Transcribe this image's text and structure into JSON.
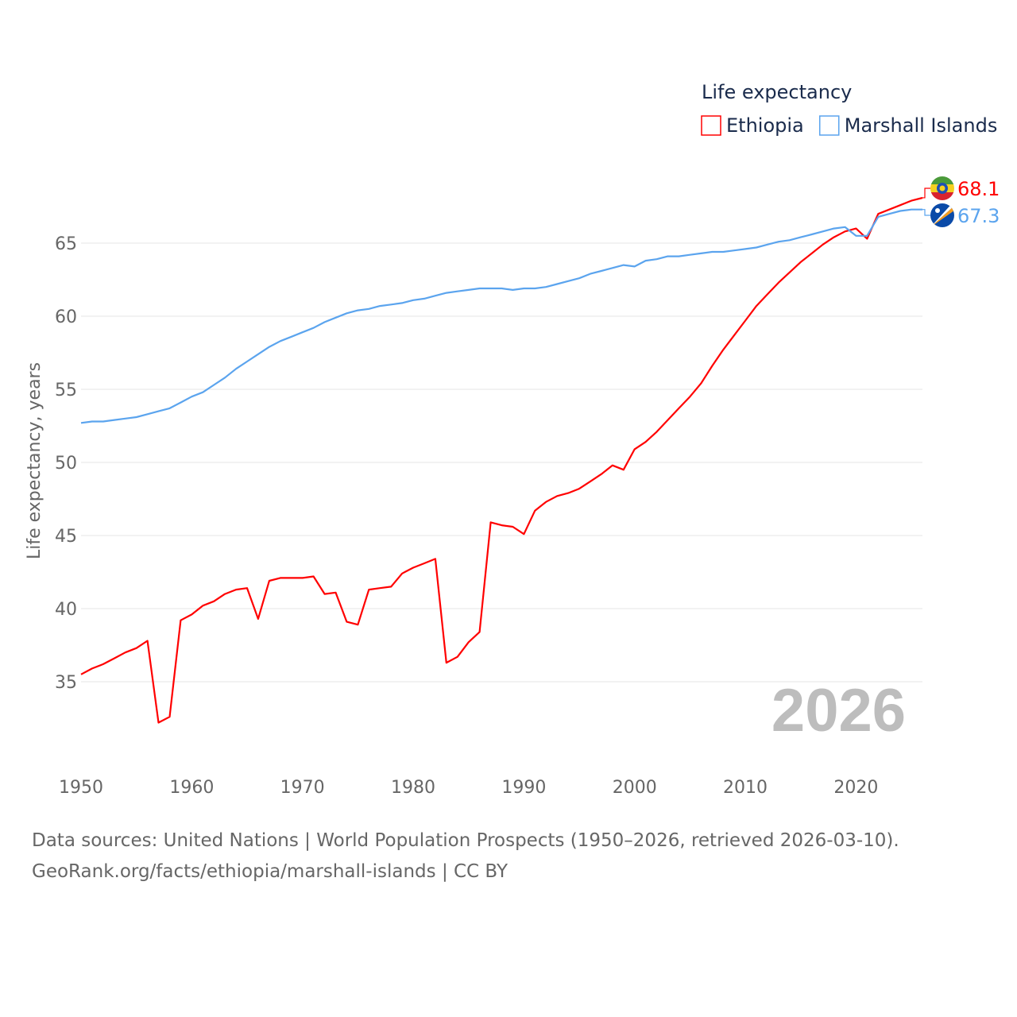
{
  "chart_data": {
    "type": "line",
    "title": "",
    "xlabel": "",
    "ylabel": "Life expectancy, years",
    "legend_title": "Life expectancy",
    "legend_position": "top-right",
    "xlim": [
      1950,
      2026
    ],
    "ylim": [
      31,
      69
    ],
    "x_ticks": [
      1950,
      1960,
      1970,
      1980,
      1990,
      2000,
      2010,
      2020
    ],
    "y_ticks": [
      35,
      40,
      45,
      50,
      55,
      60,
      65
    ],
    "grid": true,
    "watermark_year": "2026",
    "x": [
      1950,
      1951,
      1952,
      1953,
      1954,
      1955,
      1956,
      1957,
      1958,
      1959,
      1960,
      1961,
      1962,
      1963,
      1964,
      1965,
      1966,
      1967,
      1968,
      1969,
      1970,
      1971,
      1972,
      1973,
      1974,
      1975,
      1976,
      1977,
      1978,
      1979,
      1980,
      1981,
      1982,
      1983,
      1984,
      1985,
      1986,
      1987,
      1988,
      1989,
      1990,
      1991,
      1992,
      1993,
      1994,
      1995,
      1996,
      1997,
      1998,
      1999,
      2000,
      2001,
      2002,
      2003,
      2004,
      2005,
      2006,
      2007,
      2008,
      2009,
      2010,
      2011,
      2012,
      2013,
      2014,
      2015,
      2016,
      2017,
      2018,
      2019,
      2020,
      2021,
      2022,
      2023,
      2024,
      2025,
      2026
    ],
    "series": [
      {
        "name": "Ethiopia",
        "color": "#ff0000",
        "end_label": "68.1",
        "values": [
          35.5,
          35.9,
          36.2,
          36.6,
          37.0,
          37.3,
          37.8,
          32.2,
          32.6,
          39.2,
          39.6,
          40.2,
          40.5,
          41.0,
          41.3,
          41.4,
          39.3,
          41.9,
          42.1,
          42.1,
          42.1,
          42.2,
          41.0,
          41.1,
          39.1,
          38.9,
          41.3,
          41.4,
          41.5,
          42.4,
          42.8,
          43.1,
          43.4,
          36.3,
          36.7,
          37.7,
          38.4,
          45.9,
          45.7,
          45.6,
          45.1,
          46.7,
          47.3,
          47.7,
          47.9,
          48.2,
          48.7,
          49.2,
          49.8,
          49.5,
          50.9,
          51.4,
          52.1,
          52.9,
          53.7,
          54.5,
          55.4,
          56.6,
          57.7,
          58.7,
          59.7,
          60.7,
          61.5,
          62.3,
          63.0,
          63.7,
          64.3,
          64.9,
          65.4,
          65.8,
          66.0,
          65.3,
          67.0,
          67.3,
          67.6,
          67.9,
          68.1
        ]
      },
      {
        "name": "Marshall Islands",
        "color": "#5ba4ee",
        "end_label": "67.3",
        "values": [
          52.7,
          52.8,
          52.8,
          52.9,
          53.0,
          53.1,
          53.3,
          53.5,
          53.7,
          54.1,
          54.5,
          54.8,
          55.3,
          55.8,
          56.4,
          56.9,
          57.4,
          57.9,
          58.3,
          58.6,
          58.9,
          59.2,
          59.6,
          59.9,
          60.2,
          60.4,
          60.5,
          60.7,
          60.8,
          60.9,
          61.1,
          61.2,
          61.4,
          61.6,
          61.7,
          61.8,
          61.9,
          61.9,
          61.9,
          61.8,
          61.9,
          61.9,
          62.0,
          62.2,
          62.4,
          62.6,
          62.9,
          63.1,
          63.3,
          63.5,
          63.4,
          63.8,
          63.9,
          64.1,
          64.1,
          64.2,
          64.3,
          64.4,
          64.4,
          64.5,
          64.6,
          64.7,
          64.9,
          65.1,
          65.2,
          65.4,
          65.6,
          65.8,
          66.0,
          66.1,
          65.5,
          65.5,
          66.8,
          67.0,
          67.2,
          67.3,
          67.3
        ]
      }
    ]
  },
  "footer": {
    "line1": "Data sources: United Nations | World Population Prospects (1950–2026, retrieved 2026-03-10).",
    "line2": "GeoRank.org/facts/ethiopia/marshall-islands | CC BY"
  }
}
